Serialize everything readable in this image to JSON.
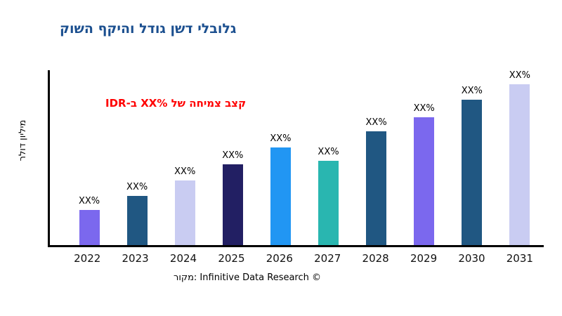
{
  "chart_data": {
    "type": "bar",
    "title": {
      "text": "גלובלי דשן גודל והיקף השוק",
      "color": "#1B4F8F"
    },
    "annotation": {
      "text": "קצב צמיחה של %XX ב-IDR",
      "color": "#FF0000"
    },
    "ylabel": "מיליון דולר",
    "categories": [
      "2022",
      "2023",
      "2024",
      "2025",
      "2026",
      "2027",
      "2028",
      "2029",
      "2030",
      "2031"
    ],
    "bar_labels": [
      "XX%",
      "XX%",
      "XX%",
      "XX%",
      "XX%",
      "XX%",
      "XX%",
      "XX%",
      "XX%",
      "XX%"
    ],
    "values": [
      20,
      28,
      37,
      46,
      56,
      48,
      65,
      73,
      83,
      92
    ],
    "values_note": "No numeric y-axis ticks shown; all data labels are 'XX%' placeholders. Values are relative bar heights in % of plot height.",
    "bar_colors": [
      "#7B68EE",
      "#205782",
      "#C9CCF2",
      "#221F63",
      "#2196F3",
      "#29B6B0",
      "#205782",
      "#7B68EE",
      "#205782",
      "#C9CCF2"
    ],
    "y_axis_tick_labels": [],
    "axis_color": "#000000",
    "grid": "off",
    "legend": "none"
  },
  "footer": {
    "text": "מקור: Infinitive Data Research ©"
  }
}
